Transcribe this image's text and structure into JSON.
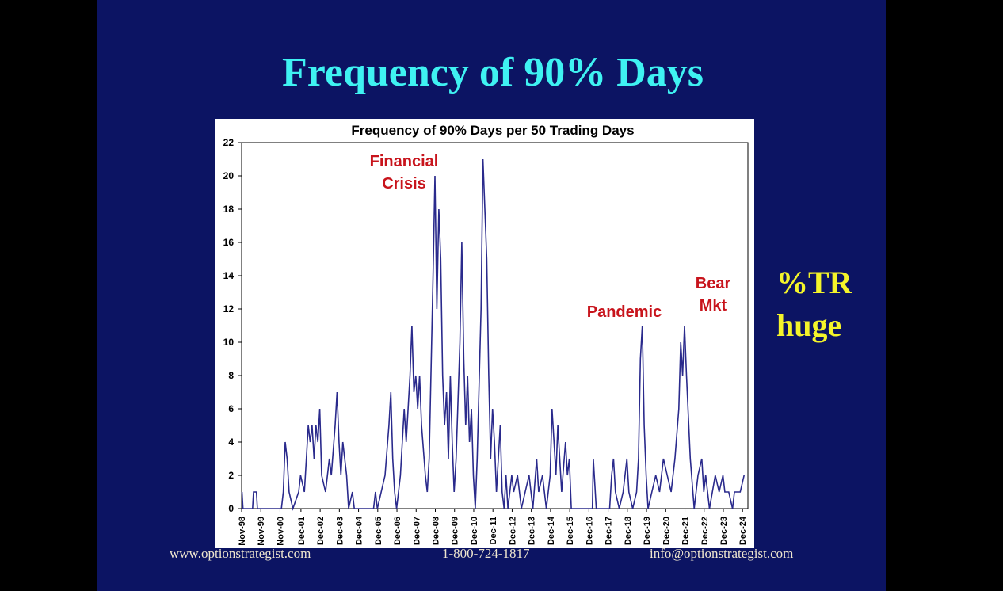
{
  "slide_title": "Frequency of 90% Days",
  "side_note": "%TR huge",
  "footer": [
    "www.optionstrategist.com",
    "1-800-724-1817",
    "info@optionstrategist.com"
  ],
  "chart_data": {
    "type": "line",
    "title": "Frequency of 90% Days per 50 Trading Days",
    "annotations": [
      "Financial Crisis",
      "Pandemic",
      "Bear Mkt"
    ],
    "color": "#2a2a8c",
    "grid": false,
    "xlim": [
      1998.83,
      2025.2
    ],
    "ylim": [
      0,
      22
    ],
    "yticks": [
      0,
      2,
      4,
      6,
      8,
      10,
      12,
      14,
      16,
      18,
      20,
      22
    ],
    "xticks": [
      {
        "value": 1998.83,
        "label": "Nov-98"
      },
      {
        "value": 1999.83,
        "label": "Nov-99"
      },
      {
        "value": 2000.83,
        "label": "Nov-00"
      },
      {
        "value": 2001.92,
        "label": "Dec-01"
      },
      {
        "value": 2002.92,
        "label": "Dec-02"
      },
      {
        "value": 2003.92,
        "label": "Dec-03"
      },
      {
        "value": 2004.92,
        "label": "Dec-04"
      },
      {
        "value": 2005.92,
        "label": "Dec-05"
      },
      {
        "value": 2006.92,
        "label": "Dec-06"
      },
      {
        "value": 2007.92,
        "label": "Dec-07"
      },
      {
        "value": 2008.92,
        "label": "Dec-08"
      },
      {
        "value": 2009.92,
        "label": "Dec-09"
      },
      {
        "value": 2010.92,
        "label": "Dec-10"
      },
      {
        "value": 2011.92,
        "label": "Dec-11"
      },
      {
        "value": 2012.92,
        "label": "Dec-12"
      },
      {
        "value": 2013.92,
        "label": "Dec-13"
      },
      {
        "value": 2014.92,
        "label": "Dec-14"
      },
      {
        "value": 2015.92,
        "label": "Dec-15"
      },
      {
        "value": 2016.92,
        "label": "Dec-16"
      },
      {
        "value": 2017.92,
        "label": "Dec-17"
      },
      {
        "value": 2018.92,
        "label": "Dec-18"
      },
      {
        "value": 2019.92,
        "label": "Dec-19"
      },
      {
        "value": 2020.92,
        "label": "Dec-20"
      },
      {
        "value": 2021.92,
        "label": "Dec-21"
      },
      {
        "value": 2022.92,
        "label": "Dec-22"
      },
      {
        "value": 2023.92,
        "label": "Dec-23"
      },
      {
        "value": 2024.92,
        "label": "Dec-24"
      }
    ],
    "x": [
      1998.85,
      1998.9,
      1999.4,
      1999.45,
      1999.6,
      1999.65,
      2000.4,
      2000.9,
      2001.0,
      2001.1,
      2001.2,
      2001.3,
      2001.5,
      2001.8,
      2001.9,
      2002.1,
      2002.2,
      2002.3,
      2002.4,
      2002.5,
      2002.6,
      2002.7,
      2002.8,
      2002.9,
      2003.0,
      2003.2,
      2003.4,
      2003.5,
      2003.7,
      2003.8,
      2003.9,
      2004.0,
      2004.1,
      2004.3,
      2004.4,
      2004.6,
      2004.7,
      2005.7,
      2005.8,
      2005.9,
      2006.3,
      2006.5,
      2006.6,
      2006.7,
      2006.8,
      2006.9,
      2007.1,
      2007.3,
      2007.4,
      2007.6,
      2007.7,
      2007.8,
      2007.9,
      2008.0,
      2008.1,
      2008.2,
      2008.4,
      2008.5,
      2008.6,
      2008.8,
      2008.9,
      2009.0,
      2009.1,
      2009.2,
      2009.3,
      2009.4,
      2009.5,
      2009.6,
      2009.7,
      2009.8,
      2009.9,
      2010.0,
      2010.2,
      2010.3,
      2010.4,
      2010.5,
      2010.6,
      2010.7,
      2010.8,
      2010.9,
      2011.0,
      2011.1,
      2011.3,
      2011.4,
      2011.5,
      2011.6,
      2011.7,
      2011.8,
      2011.9,
      2012.0,
      2012.1,
      2012.2,
      2012.3,
      2012.4,
      2012.5,
      2012.6,
      2012.7,
      2012.9,
      2013.0,
      2013.2,
      2013.4,
      2013.6,
      2013.8,
      2014.0,
      2014.2,
      2014.3,
      2014.5,
      2014.7,
      2014.9,
      2015.0,
      2015.1,
      2015.2,
      2015.3,
      2015.4,
      2015.5,
      2015.7,
      2015.8,
      2015.9,
      2016.0,
      2017.1,
      2017.15,
      2017.3,
      2018.0,
      2018.1,
      2018.2,
      2018.3,
      2018.5,
      2018.7,
      2018.9,
      2019.0,
      2019.2,
      2019.4,
      2019.5,
      2019.6,
      2019.7,
      2019.8,
      2019.9,
      2020.0,
      2020.2,
      2020.4,
      2020.6,
      2020.8,
      2021.0,
      2021.2,
      2021.4,
      2021.6,
      2021.7,
      2021.8,
      2021.9,
      2022.0,
      2022.2,
      2022.4,
      2022.6,
      2022.8,
      2022.9,
      2023.0,
      2023.2,
      2023.5,
      2023.7,
      2023.9,
      2024.0,
      2024.2,
      2024.4,
      2024.5,
      2024.8,
      2025.0
    ],
    "values": [
      1,
      0,
      0,
      1,
      1,
      0,
      0,
      0,
      1,
      4,
      3,
      1,
      0,
      1,
      2,
      1,
      3,
      5,
      4,
      5,
      3,
      5,
      4,
      6,
      2,
      1,
      3,
      2,
      5,
      7,
      4,
      2,
      4,
      2,
      0,
      1,
      0,
      0,
      1,
      0,
      2,
      5,
      7,
      3,
      1,
      0,
      2,
      6,
      4,
      8,
      11,
      7,
      8,
      6,
      8,
      5,
      2,
      1,
      3,
      14,
      20,
      12,
      18,
      15,
      8,
      5,
      7,
      3,
      8,
      4,
      1,
      3,
      10,
      16,
      9,
      5,
      8,
      4,
      6,
      2,
      0,
      3,
      12,
      21,
      18,
      15,
      8,
      3,
      6,
      4,
      1,
      3,
      5,
      1,
      0,
      2,
      0,
      2,
      1,
      2,
      0,
      1,
      2,
      0,
      3,
      1,
      2,
      0,
      2,
      6,
      4,
      2,
      5,
      3,
      1,
      4,
      2,
      3,
      0,
      0,
      3,
      0,
      0,
      2,
      3,
      1,
      0,
      1,
      3,
      1,
      0,
      1,
      3,
      9,
      11,
      5,
      2,
      0,
      1,
      2,
      1,
      3,
      2,
      1,
      3,
      6,
      10,
      8,
      11,
      8,
      3,
      0,
      2,
      3,
      1,
      2,
      0,
      2,
      1,
      2,
      1,
      1,
      0,
      1,
      1,
      2
    ]
  }
}
